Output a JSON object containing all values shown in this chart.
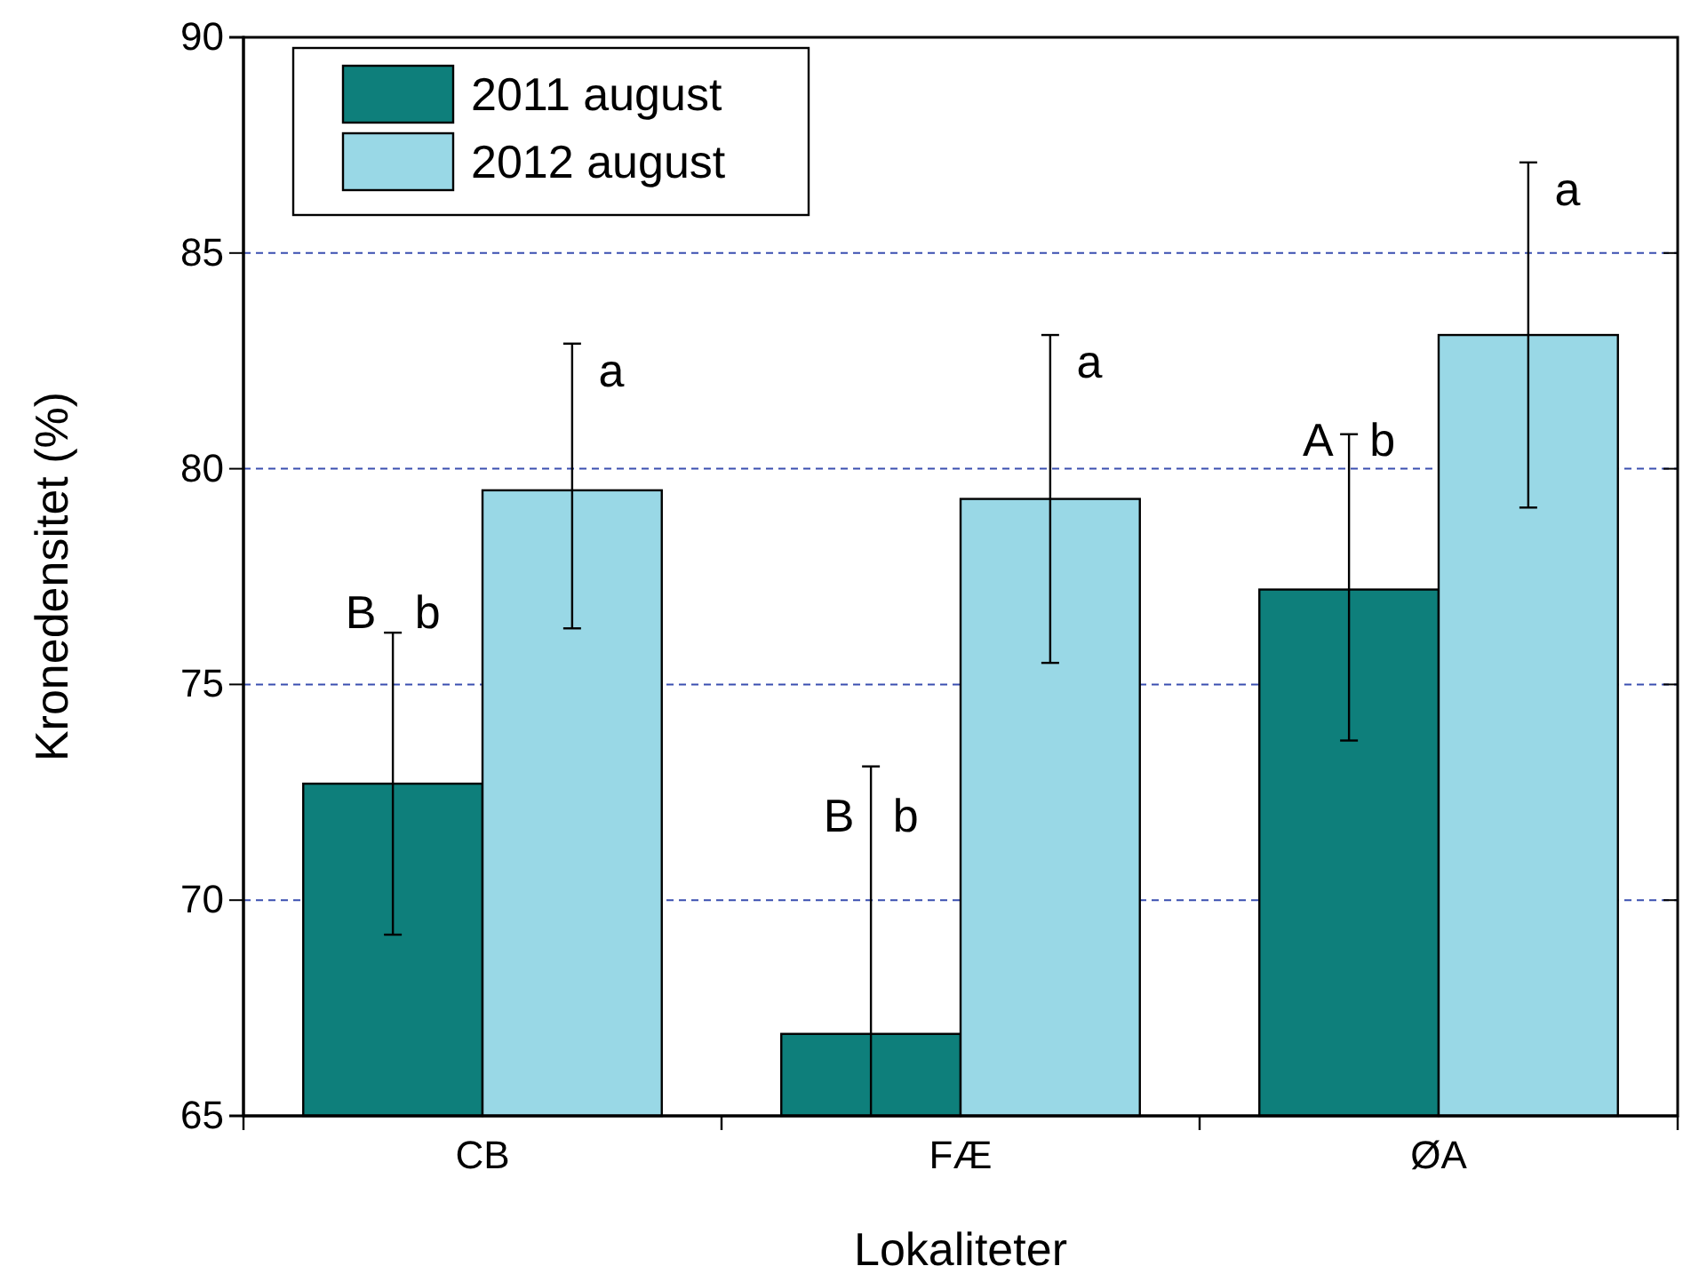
{
  "chart_data": {
    "type": "bar",
    "xlabel": "Lokaliteter",
    "ylabel": "Kronedensitet (%)",
    "categories": [
      "CB",
      "FÆ",
      "ØA"
    ],
    "series": [
      {
        "name": "2011 august",
        "color": "#0e7f7b",
        "values": [
          72.7,
          66.9,
          77.2
        ],
        "errors": [
          [
            69.2,
            76.2
          ],
          [
            65,
            73.1
          ],
          [
            73.7,
            80.8
          ]
        ]
      },
      {
        "name": "2012 august",
        "color": "#99d8e6",
        "values": [
          79.5,
          79.3,
          83.1
        ],
        "errors": [
          [
            76.3,
            82.9
          ],
          [
            75.5,
            83.1
          ],
          [
            79.1,
            87.1
          ]
        ],
        "value_labels": [
          "a",
          "a",
          "a"
        ]
      }
    ],
    "annotations": [
      {
        "text": "B   b",
        "x": "CB",
        "y": 76.3
      },
      {
        "text": "B   b",
        "x": "FÆ",
        "y": 71.6
      },
      {
        "text": "A   b",
        "x": "ØA",
        "y": 80.3
      }
    ],
    "ylim": [
      65,
      90
    ],
    "yticks": [
      65,
      70,
      75,
      80,
      85,
      90
    ],
    "grid": "y",
    "legend": "top left"
  }
}
